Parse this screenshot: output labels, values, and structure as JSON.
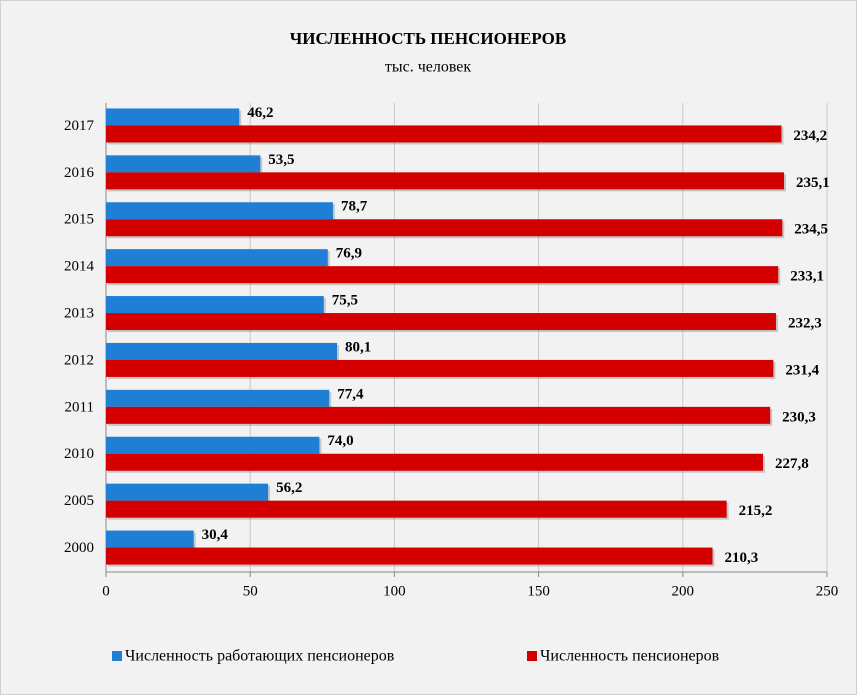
{
  "chart_data": {
    "type": "hbar",
    "title": "ЧИСЛЕННОСТЬ ПЕНСИОНЕРОВ",
    "subtitle": "тыс. человек",
    "categories": [
      "2017",
      "2016",
      "2015",
      "2014",
      "2013",
      "2012",
      "2011",
      "2010",
      "2005",
      "2000"
    ],
    "series": [
      {
        "name": "Численность работающих пенсионеров",
        "color": "#1f7fd4",
        "values": [
          46.2,
          53.5,
          78.7,
          76.9,
          75.5,
          80.1,
          77.4,
          74.0,
          56.2,
          30.4
        ],
        "value_labels": [
          "46,2",
          "53,5",
          "78,7",
          "76,9",
          "75,5",
          "80,1",
          "77,4",
          "74,0",
          "56,2",
          "30,4"
        ]
      },
      {
        "name": "Численность пенсионеров",
        "color": "#d40000",
        "values": [
          234.2,
          235.1,
          234.5,
          233.1,
          232.3,
          231.4,
          230.3,
          227.8,
          215.2,
          210.3
        ],
        "value_labels": [
          "234,2",
          "235,1",
          "234,5",
          "233,1",
          "232,3",
          "231,4",
          "230,3",
          "227,8",
          "215,2",
          "210,3"
        ]
      }
    ],
    "xlim": [
      0,
      250
    ],
    "xticks": [
      0,
      50,
      100,
      150,
      200,
      250
    ],
    "grid": true,
    "legend": "bottom"
  }
}
